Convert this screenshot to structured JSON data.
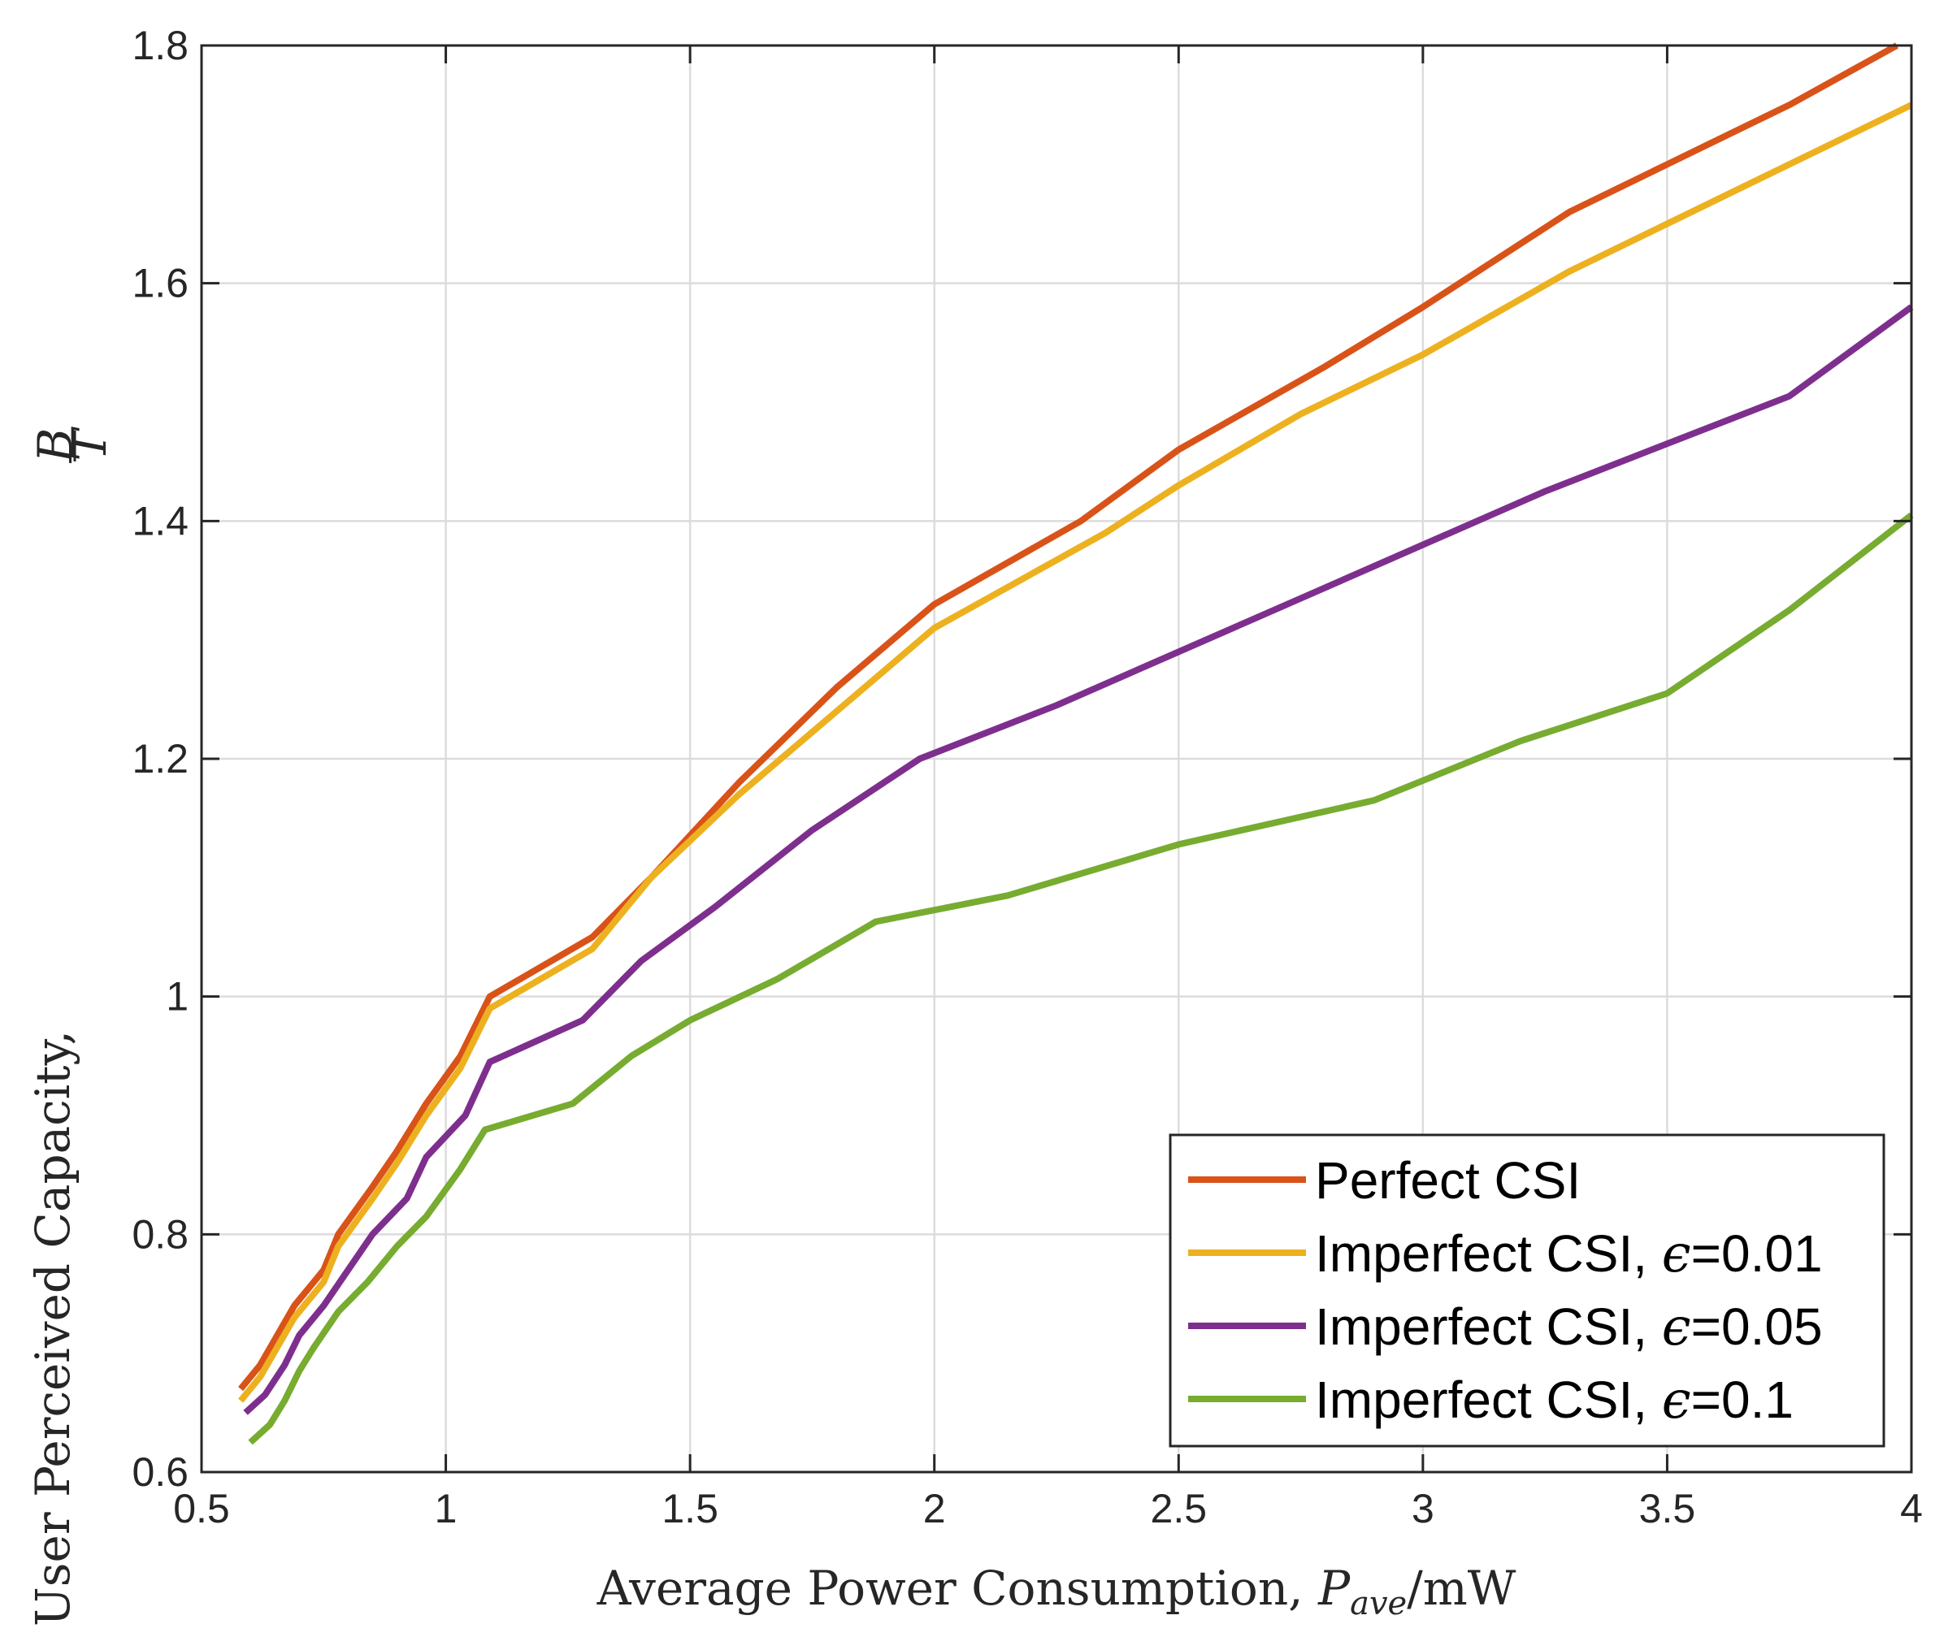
{
  "chart_data": {
    "type": "line",
    "title": "",
    "xlabel": "Average Power Consumption, P_ave/mW",
    "xlabel_parts": {
      "prefix": "Average Power Consumption, ",
      "var": "P",
      "sub": "ave",
      "suffix": "/mW"
    },
    "ylabel": "User Perceived Capacity, B/T",
    "ylabel_parts": {
      "prefix": "User Perceived Capacity, ",
      "num": "B",
      "den": "T"
    },
    "xlim": [
      0.5,
      4
    ],
    "ylim": [
      0.6,
      1.8
    ],
    "xticks": [
      0.5,
      1,
      1.5,
      2,
      2.5,
      3,
      3.5,
      4
    ],
    "xtick_labels": [
      "0.5",
      "1",
      "1.5",
      "2",
      "2.5",
      "3",
      "3.5",
      "4"
    ],
    "yticks": [
      0.6,
      0.8,
      1.0,
      1.2,
      1.4,
      1.6,
      1.8
    ],
    "ytick_labels": [
      "0.6",
      "0.8",
      "1",
      "1.2",
      "1.4",
      "1.6",
      "1.8"
    ],
    "grid": true,
    "legend_position": "bottom-right",
    "series": [
      {
        "name": "Perfect CSI",
        "label_prefix": "Perfect CSI",
        "label_eps": "",
        "label_suffix": "",
        "color": "#D95319",
        "x": [
          0.58,
          0.62,
          0.69,
          0.75,
          0.78,
          0.85,
          0.9,
          0.96,
          1.03,
          1.09,
          1.3,
          1.42,
          1.6,
          1.8,
          2.0,
          2.3,
          2.5,
          2.8,
          3.0,
          3.3,
          3.5,
          3.75,
          3.97
        ],
        "y": [
          0.67,
          0.69,
          0.74,
          0.77,
          0.8,
          0.84,
          0.87,
          0.91,
          0.95,
          1.0,
          1.05,
          1.1,
          1.18,
          1.26,
          1.33,
          1.4,
          1.46,
          1.53,
          1.58,
          1.66,
          1.7,
          1.75,
          1.8
        ]
      },
      {
        "name": "Imperfect CSI, ε=0.01",
        "label_prefix": "Imperfect CSI, ",
        "label_eps": "ϵ",
        "label_suffix": "=0.01",
        "color": "#EDB120",
        "x": [
          0.58,
          0.62,
          0.69,
          0.75,
          0.78,
          0.85,
          0.9,
          0.96,
          1.03,
          1.09,
          1.3,
          1.42,
          1.6,
          1.8,
          2.0,
          2.35,
          2.5,
          2.75,
          3.0,
          3.3,
          3.5,
          3.75,
          4.0
        ],
        "y": [
          0.66,
          0.68,
          0.73,
          0.76,
          0.79,
          0.83,
          0.86,
          0.9,
          0.94,
          0.99,
          1.04,
          1.1,
          1.17,
          1.24,
          1.31,
          1.39,
          1.43,
          1.49,
          1.54,
          1.61,
          1.65,
          1.7,
          1.75
        ]
      },
      {
        "name": "Imperfect CSI, ε=0.05",
        "label_prefix": "Imperfect CSI, ",
        "label_eps": "ϵ",
        "label_suffix": "=0.05",
        "color": "#7E2F8E",
        "x": [
          0.59,
          0.63,
          0.67,
          0.7,
          0.75,
          0.8,
          0.85,
          0.92,
          0.96,
          1.04,
          1.09,
          1.28,
          1.4,
          1.55,
          1.75,
          1.97,
          2.25,
          2.5,
          2.75,
          3.0,
          3.25,
          3.5,
          3.75,
          4.0
        ],
        "y": [
          0.65,
          0.665,
          0.69,
          0.715,
          0.74,
          0.77,
          0.8,
          0.83,
          0.865,
          0.9,
          0.945,
          0.98,
          1.03,
          1.075,
          1.14,
          1.2,
          1.245,
          1.29,
          1.335,
          1.38,
          1.425,
          1.465,
          1.505,
          1.58
        ]
      },
      {
        "name": "Imperfect CSI, ε=0.1",
        "label_prefix": "Imperfect CSI, ",
        "label_eps": "ϵ",
        "label_suffix": "=0.1",
        "color": "#77AC30",
        "x": [
          0.6,
          0.64,
          0.67,
          0.7,
          0.73,
          0.78,
          0.84,
          0.9,
          0.96,
          1.03,
          1.08,
          1.26,
          1.38,
          1.5,
          1.68,
          1.88,
          2.15,
          2.5,
          2.9,
          3.2,
          3.5,
          3.75,
          4.0
        ],
        "y": [
          0.625,
          0.64,
          0.66,
          0.685,
          0.705,
          0.735,
          0.76,
          0.79,
          0.815,
          0.855,
          0.888,
          0.91,
          0.95,
          0.98,
          1.015,
          1.063,
          1.085,
          1.128,
          1.165,
          1.215,
          1.255,
          1.325,
          1.405
        ]
      }
    ]
  }
}
